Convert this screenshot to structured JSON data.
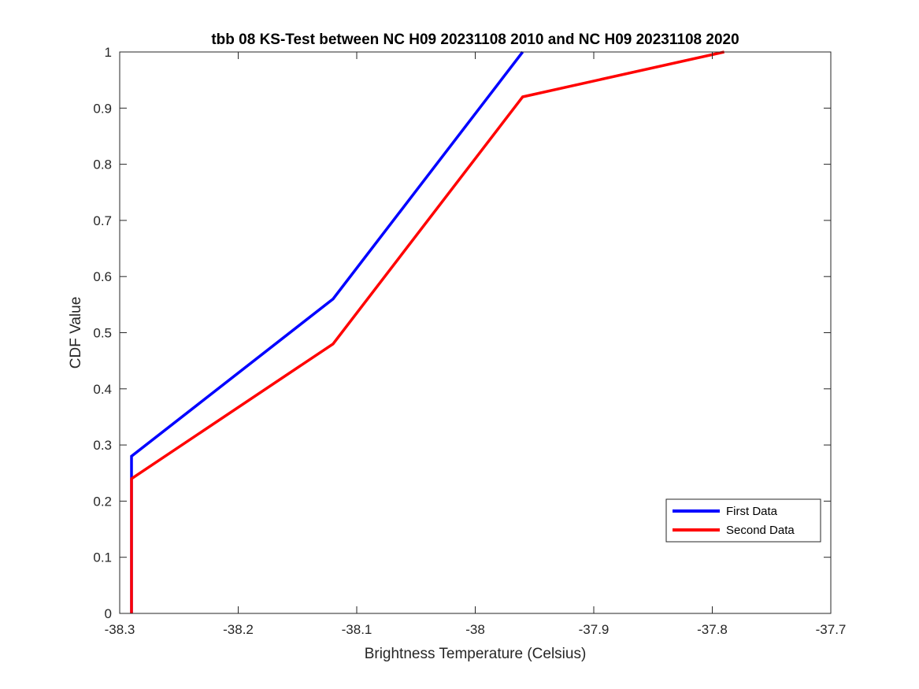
{
  "chart_data": {
    "type": "line",
    "title": "tbb 08 KS-Test between NC H09 20231108 2010 and NC H09 20231108 2020",
    "xlabel": "Brightness Temperature (Celsius)",
    "ylabel": "CDF Value",
    "xlim": [
      -38.3,
      -37.7
    ],
    "ylim": [
      0,
      1
    ],
    "xticks": [
      -38.3,
      -38.2,
      -38.1,
      -38.0,
      -37.9,
      -37.8,
      -37.7
    ],
    "xtick_labels": [
      "-38.3",
      "-38.2",
      "-38.1",
      "-38",
      "-37.9",
      "-37.8",
      "-37.7"
    ],
    "yticks": [
      0,
      0.1,
      0.2,
      0.3,
      0.4,
      0.5,
      0.6,
      0.7,
      0.8,
      0.9,
      1
    ],
    "ytick_labels": [
      "0",
      "0.1",
      "0.2",
      "0.3",
      "0.4",
      "0.5",
      "0.6",
      "0.7",
      "0.8",
      "0.9",
      "1"
    ],
    "grid": false,
    "legend_position": "bottom-right",
    "series": [
      {
        "name": "First Data",
        "color": "#0000ff",
        "x": [
          -38.29,
          -38.29,
          -38.29,
          -38.12,
          -37.96
        ],
        "y": [
          0,
          0.24,
          0.28,
          0.56,
          1.0
        ]
      },
      {
        "name": "Second Data",
        "color": "#ff0000",
        "x": [
          -38.29,
          -38.29,
          -38.12,
          -37.96,
          -37.79
        ],
        "y": [
          0,
          0.24,
          0.48,
          0.92,
          1.0
        ]
      }
    ]
  }
}
